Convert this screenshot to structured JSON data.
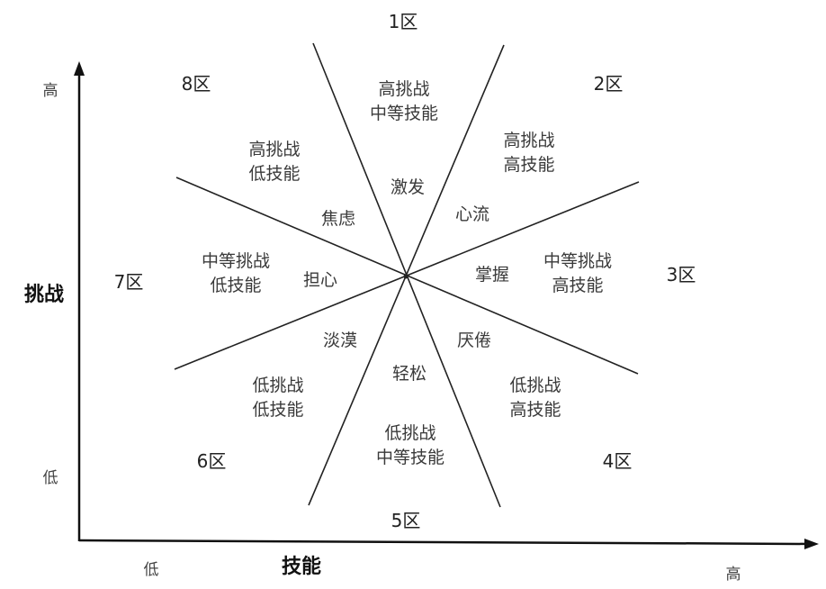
{
  "axes": {
    "y_title": "挑战",
    "x_title": "技能",
    "y_high": "高",
    "y_low": "低",
    "x_low": "低",
    "x_high": "高"
  },
  "zones": [
    "1区",
    "2区",
    "3区",
    "4区",
    "5区",
    "6区",
    "7区",
    "8区"
  ],
  "zone_descriptions": {
    "z1": "高挑战\n中等技能",
    "z2": "高挑战\n高技能",
    "z3": "中等挑战\n高技能",
    "z4": "低挑战\n高技能",
    "z5": "低挑战\n中等技能",
    "z6": "低挑战\n低技能",
    "z7": "中等挑战\n低技能",
    "z8": "高挑战\n低技能"
  },
  "states": {
    "arousal": "激发",
    "flow": "心流",
    "control": "掌握",
    "boredom": "厌倦",
    "relaxation": "轻松",
    "apathy": "淡漠",
    "worry": "担心",
    "anxiety": "焦虑"
  },
  "colors": {
    "line": "#222222",
    "text": "#3a3a3a"
  }
}
